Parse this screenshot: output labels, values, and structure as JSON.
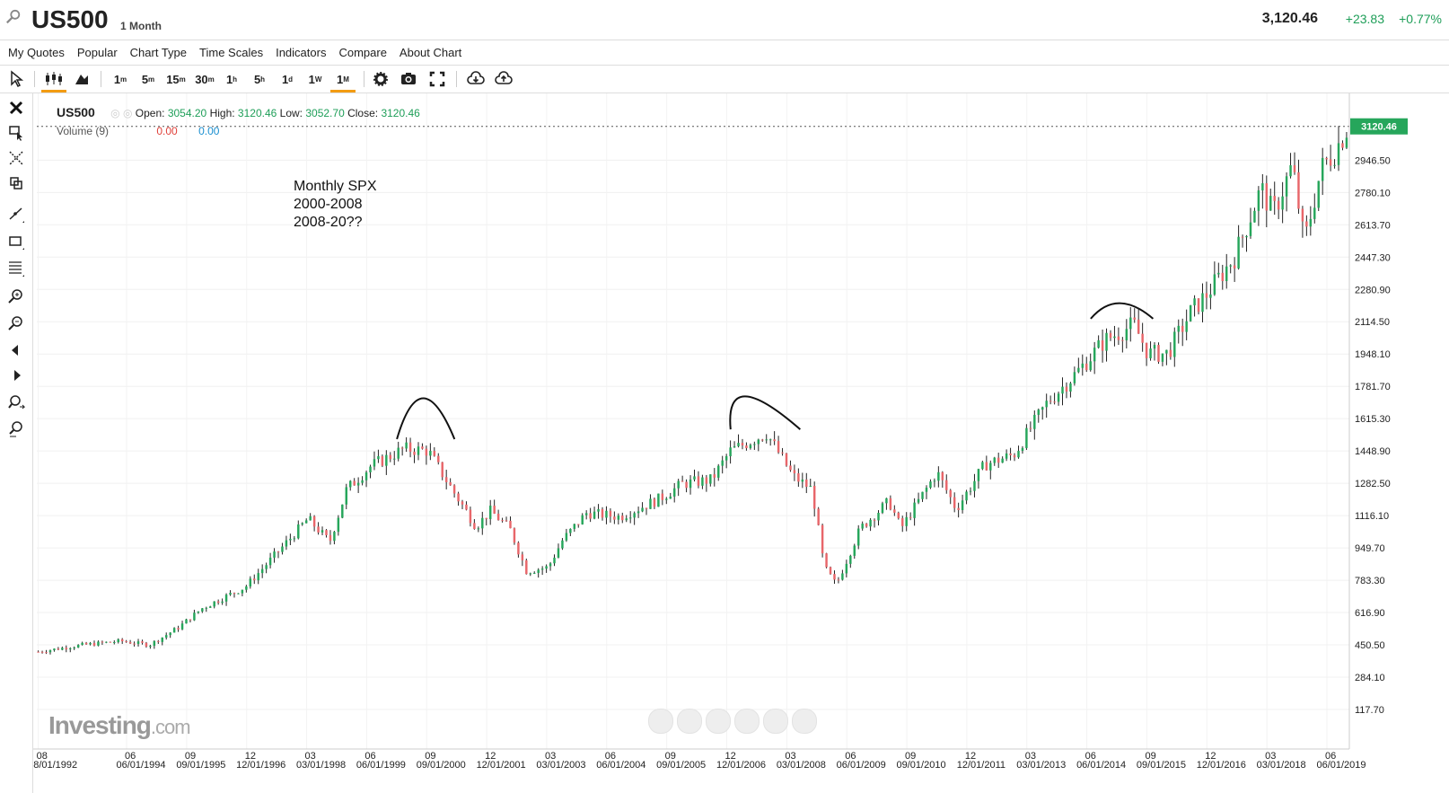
{
  "header": {
    "symbol": "US500",
    "timeframe": "1 Month",
    "price": "3,120.46",
    "change": "+23.83",
    "change_pct": "+0.77%"
  },
  "menu": [
    "My Quotes",
    "Popular",
    "Chart Type",
    "Time Scales",
    "Indicators",
    "Compare",
    "About Chart"
  ],
  "toolbar": {
    "intervals": [
      {
        "base": "1",
        "sup": "m"
      },
      {
        "base": "5",
        "sup": "m"
      },
      {
        "base": "15",
        "sup": "m"
      },
      {
        "base": "30",
        "sup": "m"
      },
      {
        "base": "1",
        "sup": "h"
      },
      {
        "base": "5",
        "sup": "h"
      },
      {
        "base": "1",
        "sup": "d"
      },
      {
        "base": "1",
        "sup": "W"
      },
      {
        "base": "1",
        "sup": "M"
      }
    ],
    "active_interval": "1M"
  },
  "legend": {
    "symbol": "US500",
    "open_label": "Open:",
    "open": "3054.20",
    "high_label": "High:",
    "high": "3120.46",
    "low_label": "Low:",
    "low": "3052.70",
    "close_label": "Close:",
    "close": "3120.46",
    "volume_label": "Volume (9)",
    "volume_val1": "0.00",
    "volume_val2": "0.00"
  },
  "note": [
    "Monthly SPX",
    "2000-2008",
    "2008-20??"
  ],
  "watermark": {
    "brand": "Investing",
    "suffix": ".com"
  },
  "colors": {
    "up": "#26a65b",
    "down": "#e8666a",
    "accent": "#f39c12",
    "last_price_tag": "#26a65b"
  },
  "chart_data": {
    "type": "candlestick",
    "title": "US500",
    "interval": "1 Month",
    "ylim": [
      0,
      3250
    ],
    "y_ticks": [
      117.7,
      284.1,
      450.5,
      616.9,
      783.3,
      949.7,
      1116.1,
      1282.5,
      1448.9,
      1615.3,
      1781.7,
      1948.1,
      2114.5,
      2280.9,
      2447.3,
      2613.7,
      2780.1,
      2946.5
    ],
    "last_price_label": "3120.46",
    "x_ticks": [
      {
        "top": "08",
        "bottom": "08/01/1992",
        "t": 1992.58
      },
      {
        "top": "06",
        "bottom": "06/01/1994",
        "t": 1994.42
      },
      {
        "top": "09",
        "bottom": "09/01/1995",
        "t": 1995.67
      },
      {
        "top": "12",
        "bottom": "12/01/1996",
        "t": 1996.92
      },
      {
        "top": "03",
        "bottom": "03/01/1998",
        "t": 1998.17
      },
      {
        "top": "06",
        "bottom": "06/01/1999",
        "t": 1999.42
      },
      {
        "top": "09",
        "bottom": "09/01/2000",
        "t": 2000.67
      },
      {
        "top": "12",
        "bottom": "12/01/2001",
        "t": 2001.92
      },
      {
        "top": "03",
        "bottom": "03/01/2003",
        "t": 2003.17
      },
      {
        "top": "06",
        "bottom": "06/01/2004",
        "t": 2004.42
      },
      {
        "top": "09",
        "bottom": "09/01/2005",
        "t": 2005.67
      },
      {
        "top": "12",
        "bottom": "12/01/2006",
        "t": 2006.92
      },
      {
        "top": "03",
        "bottom": "03/01/2008",
        "t": 2008.17
      },
      {
        "top": "06",
        "bottom": "06/01/2009",
        "t": 2009.42
      },
      {
        "top": "09",
        "bottom": "09/01/2010",
        "t": 2010.67
      },
      {
        "top": "12",
        "bottom": "12/01/2011",
        "t": 2011.92
      },
      {
        "top": "03",
        "bottom": "03/01/2013",
        "t": 2013.17
      },
      {
        "top": "06",
        "bottom": "06/01/2014",
        "t": 2014.42
      },
      {
        "top": "09",
        "bottom": "09/01/2015",
        "t": 2015.67
      },
      {
        "top": "12",
        "bottom": "12/01/2016",
        "t": 2016.92
      },
      {
        "top": "03",
        "bottom": "03/01/2018",
        "t": 2018.17
      },
      {
        "top": "06",
        "bottom": "06/01/2019",
        "t": 2019.42
      }
    ],
    "xlim": [
      1992.55,
      2019.85
    ],
    "anchors": [
      [
        1992.58,
        415
      ],
      [
        1993.5,
        450
      ],
      [
        1994.3,
        470
      ],
      [
        1994.9,
        450
      ],
      [
        1995.5,
        540
      ],
      [
        1996.0,
        640
      ],
      [
        1996.9,
        750
      ],
      [
        1997.5,
        910
      ],
      [
        1998.2,
        1100
      ],
      [
        1998.65,
        980
      ],
      [
        1999.0,
        1250
      ],
      [
        1999.5,
        1370
      ],
      [
        2000.2,
        1460
      ],
      [
        2000.7,
        1450
      ],
      [
        2001.2,
        1250
      ],
      [
        2001.7,
        1060
      ],
      [
        2002.0,
        1140
      ],
      [
        2002.4,
        1050
      ],
      [
        2002.75,
        830
      ],
      [
        2003.2,
        850
      ],
      [
        2003.5,
        990
      ],
      [
        2004.0,
        1130
      ],
      [
        2004.7,
        1110
      ],
      [
        2005.5,
        1200
      ],
      [
        2006.0,
        1280
      ],
      [
        2006.6,
        1300
      ],
      [
        2007.0,
        1450
      ],
      [
        2007.75,
        1540
      ],
      [
        2008.3,
        1320
      ],
      [
        2008.7,
        1250
      ],
      [
        2008.95,
        850
      ],
      [
        2009.2,
        760
      ],
      [
        2009.7,
        1050
      ],
      [
        2010.3,
        1190
      ],
      [
        2010.55,
        1050
      ],
      [
        2011.3,
        1340
      ],
      [
        2011.7,
        1150
      ],
      [
        2012.3,
        1380
      ],
      [
        2012.9,
        1430
      ],
      [
        2013.6,
        1700
      ],
      [
        2014.2,
        1850
      ],
      [
        2014.8,
        2020
      ],
      [
        2015.4,
        2100
      ],
      [
        2015.7,
        1950
      ],
      [
        2016.1,
        1950
      ],
      [
        2016.6,
        2170
      ],
      [
        2016.9,
        2250
      ],
      [
        2017.5,
        2450
      ],
      [
        2018.05,
        2800
      ],
      [
        2018.3,
        2670
      ],
      [
        2018.7,
        2920
      ],
      [
        2018.95,
        2520
      ],
      [
        2019.3,
        2900
      ],
      [
        2019.6,
        3000
      ],
      [
        2019.85,
        3120
      ]
    ],
    "annotations": [
      {
        "type": "arc",
        "from": [
          2000.05,
          1510
        ],
        "peak": [
          2000.6,
          1720
        ],
        "to": [
          2001.25,
          1510
        ]
      },
      {
        "type": "arc",
        "from": [
          2007.0,
          1560
        ],
        "peak": [
          2007.3,
          1730
        ],
        "to": [
          2008.45,
          1560
        ]
      },
      {
        "type": "arc",
        "from": [
          2014.5,
          2130
        ],
        "peak": [
          2015.1,
          2210
        ],
        "to": [
          2015.8,
          2130
        ]
      }
    ]
  }
}
